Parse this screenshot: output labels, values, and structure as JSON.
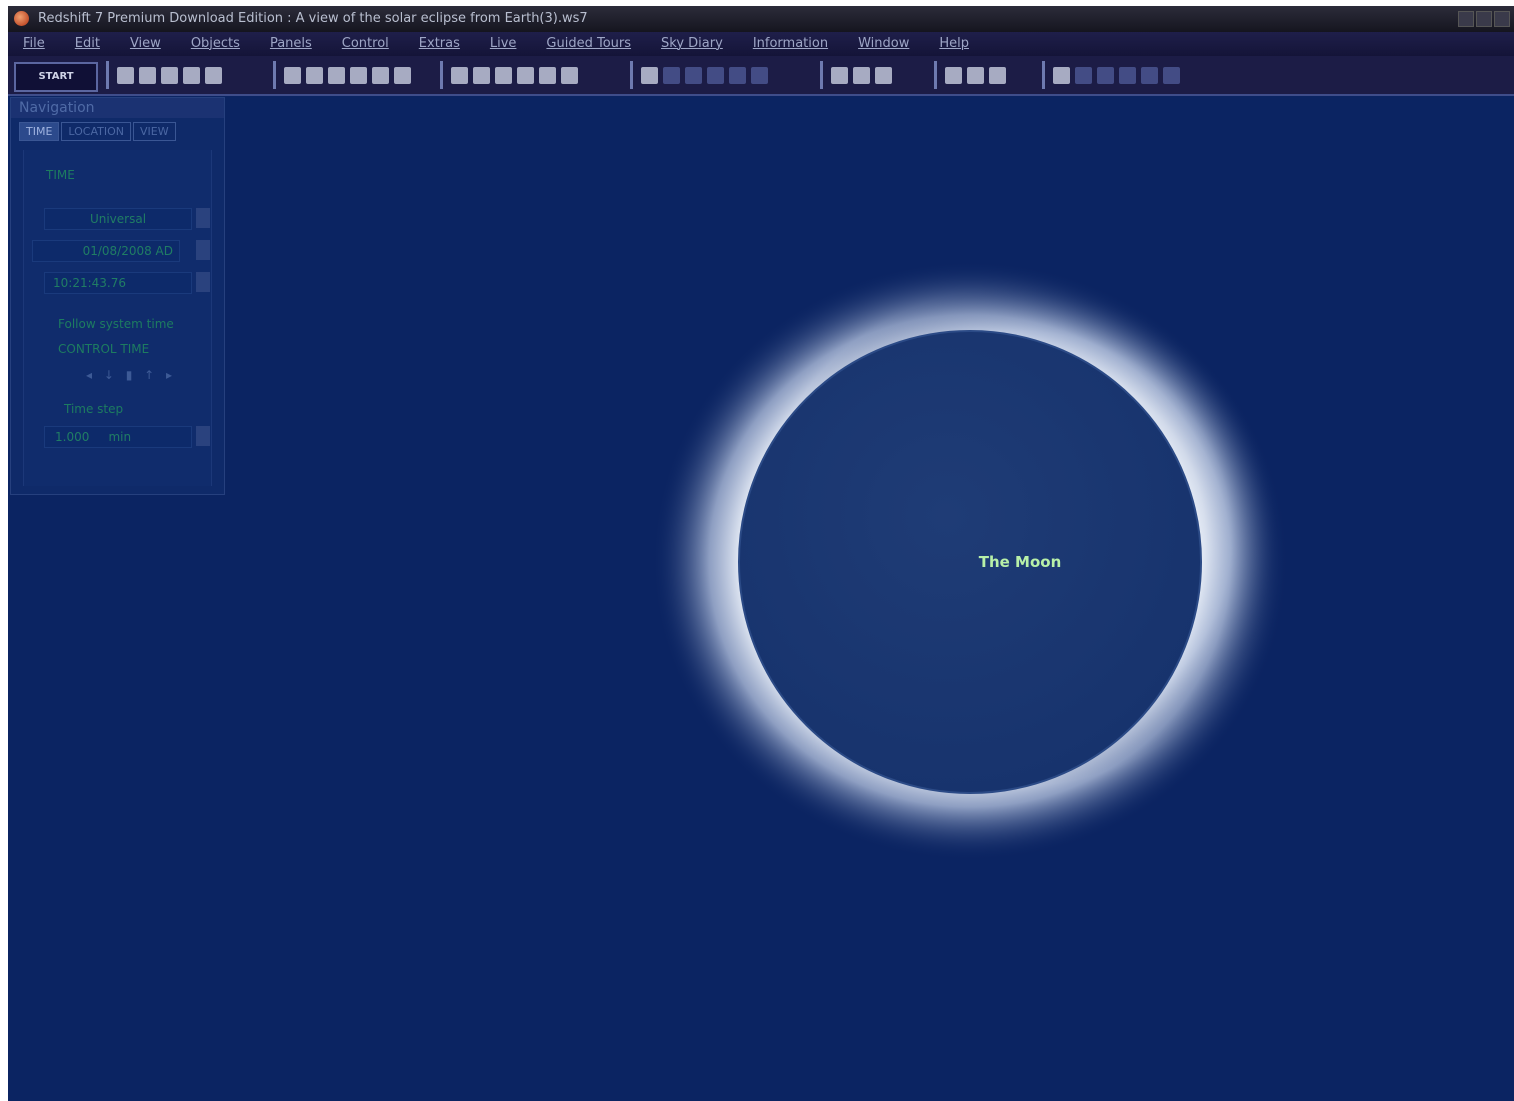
{
  "window": {
    "title": "Redshift 7 Premium Download Edition : A view of the solar eclipse from Earth(3).ws7"
  },
  "menu": [
    "File",
    "Edit",
    "View",
    "Objects",
    "Panels",
    "Control",
    "Extras",
    "Live",
    "Guided Tours",
    "Sky Diary",
    "Information",
    "Window",
    "Help"
  ],
  "toolbar": {
    "start": "START"
  },
  "navigation": {
    "title": "Navigation",
    "tabs": [
      "TIME",
      "LOCATION",
      "VIEW"
    ],
    "section": "TIME",
    "time_zone": "Universal",
    "date": "01/08/2008 AD",
    "time": "10:21:43.76",
    "follow": "Follow system time",
    "control": "CONTROL TIME",
    "step_label": "Time step",
    "step_value": "1.000",
    "step_unit": "min"
  },
  "sky": {
    "label": "The Moon"
  }
}
